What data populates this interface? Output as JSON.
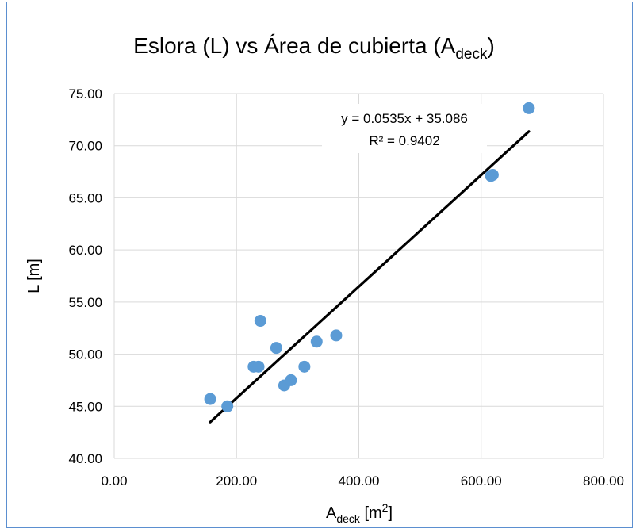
{
  "chart_data": {
    "type": "scatter",
    "title": {
      "main": "Eslora (L) vs Área de cubierta (A",
      "sub": "deck",
      "close": ")"
    },
    "xlabel": {
      "main": "A",
      "sub": "deck",
      "unit": " [m",
      "sup": "2",
      "close": "]"
    },
    "ylabel": "L [m]",
    "xlim": [
      0,
      800
    ],
    "ylim": [
      40,
      75
    ],
    "x_ticks": [
      "0.00",
      "200.00",
      "400.00",
      "600.00",
      "800.00"
    ],
    "x_tick_values": [
      0,
      200,
      400,
      600,
      800
    ],
    "y_ticks": [
      "40.00",
      "45.00",
      "50.00",
      "55.00",
      "60.00",
      "65.00",
      "70.00",
      "75.00"
    ],
    "y_tick_values": [
      40,
      45,
      50,
      55,
      60,
      65,
      70,
      75
    ],
    "grid": true,
    "points": [
      {
        "x": 157,
        "y": 45.7
      },
      {
        "x": 185,
        "y": 45.0
      },
      {
        "x": 228,
        "y": 48.8
      },
      {
        "x": 236,
        "y": 48.8
      },
      {
        "x": 239,
        "y": 53.2
      },
      {
        "x": 265,
        "y": 50.6
      },
      {
        "x": 278,
        "y": 47.0
      },
      {
        "x": 289,
        "y": 47.5
      },
      {
        "x": 311,
        "y": 48.8
      },
      {
        "x": 331,
        "y": 51.2
      },
      {
        "x": 363,
        "y": 51.8
      },
      {
        "x": 616,
        "y": 67.1
      },
      {
        "x": 619,
        "y": 67.2
      },
      {
        "x": 678,
        "y": 73.6
      }
    ],
    "trendline": {
      "slope": 0.0535,
      "intercept": 35.086,
      "x_range": [
        157,
        678
      ],
      "equation": "y = 0.0535x + 35.086",
      "r_squared": "R² = 0.9402"
    },
    "colors": {
      "points": "#5b9bd5",
      "trendline": "#000000",
      "grid": "#d9d9d9",
      "border": "#5b8fd0"
    }
  }
}
